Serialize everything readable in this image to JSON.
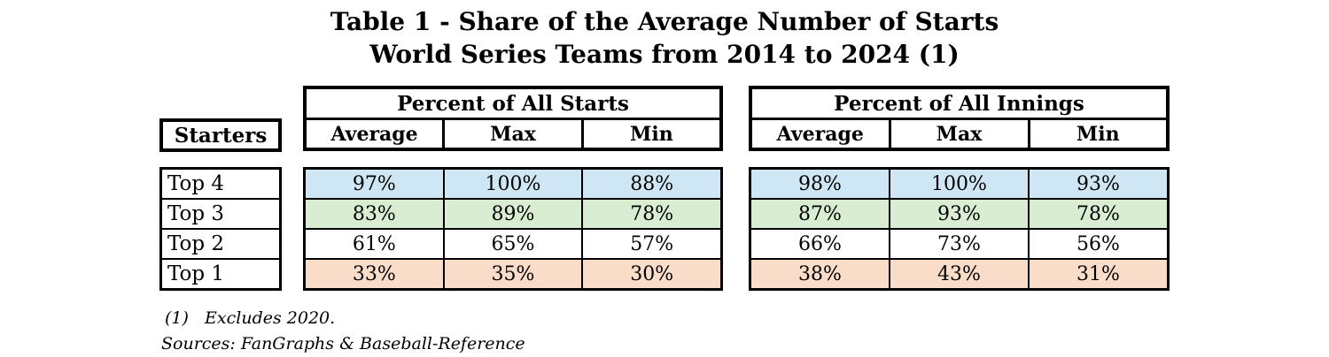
{
  "title": {
    "line1": "Table 1 - Share of the Average Number of Starts",
    "line2": "World Series Teams from 2014 to 2024 (1)"
  },
  "corner_header": "Starters",
  "row_labels": [
    "Top 4",
    "Top 3",
    "Top 2",
    "Top 1"
  ],
  "tables": [
    {
      "group_header": "Percent of All Starts",
      "columns": [
        "Average",
        "Max",
        "Min"
      ],
      "rows": [
        [
          "97%",
          "100%",
          "88%"
        ],
        [
          "83%",
          "89%",
          "78%"
        ],
        [
          "61%",
          "65%",
          "57%"
        ],
        [
          "33%",
          "35%",
          "30%"
        ]
      ]
    },
    {
      "group_header": "Percent of All Innings",
      "columns": [
        "Average",
        "Max",
        "Min"
      ],
      "rows": [
        [
          "98%",
          "100%",
          "93%"
        ],
        [
          "87%",
          "93%",
          "78%"
        ],
        [
          "66%",
          "73%",
          "56%"
        ],
        [
          "38%",
          "43%",
          "31%"
        ]
      ]
    }
  ],
  "row_colors": [
    "#cfe7f4",
    "#d8edd2",
    "#ffffff",
    "#f9ddc8"
  ],
  "border_color": "#000000",
  "footnotes": {
    "note1": "(1)   Excludes 2020.",
    "note2": "Sources: FanGraphs & Baseball-Reference"
  },
  "chart_data": {
    "type": "table",
    "title": "Table 1 - Share of the Average Number of Starts",
    "subtitle": "World Series Teams from 2014 to 2024 (1)",
    "row_labels": [
      "Top 4",
      "Top 3",
      "Top 2",
      "Top 1"
    ],
    "column_groups": [
      "Percent of All Starts",
      "Percent of All Innings"
    ],
    "columns": [
      "Average",
      "Max",
      "Min"
    ],
    "percent_of_all_starts": {
      "Top 4": {
        "Average": 97,
        "Max": 100,
        "Min": 88
      },
      "Top 3": {
        "Average": 83,
        "Max": 89,
        "Min": 78
      },
      "Top 2": {
        "Average": 61,
        "Max": 65,
        "Min": 57
      },
      "Top 1": {
        "Average": 33,
        "Max": 35,
        "Min": 30
      }
    },
    "percent_of_all_innings": {
      "Top 4": {
        "Average": 98,
        "Max": 100,
        "Min": 93
      },
      "Top 3": {
        "Average": 87,
        "Max": 93,
        "Min": 78
      },
      "Top 2": {
        "Average": 66,
        "Max": 73,
        "Min": 56
      },
      "Top 1": {
        "Average": 38,
        "Max": 43,
        "Min": 31
      }
    },
    "units": "percent",
    "footnotes": [
      "(1) Excludes 2020.",
      "Sources: FanGraphs & Baseball-Reference"
    ]
  }
}
